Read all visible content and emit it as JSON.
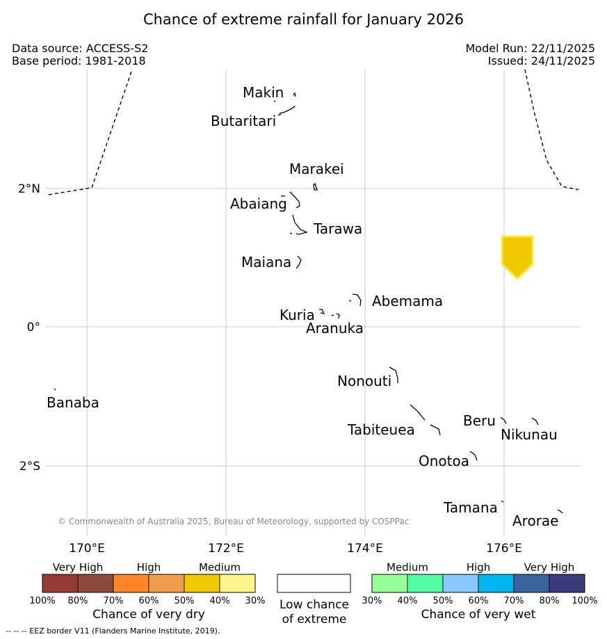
{
  "title": "Chance of extreme rainfall for January 2026",
  "source_line1": "Data source: ACCESS-S2",
  "source_line2": "Base period: 1981-2018",
  "model_run": "Model Run: 22/11/2025",
  "issued": "Issued: 24/11/2025",
  "copyright": "© Commonwealth of Australia 2025, Bureau of Meteorology, supported by COSPPac",
  "footnote": "--  --  -- EEZ border V11 (Flanders Marine Institute, 2019).",
  "axes": {
    "lon_labels": [
      "170°E",
      "172°E",
      "174°E",
      "176°E"
    ],
    "lat_labels": [
      "2°N",
      "0°",
      "2°S"
    ]
  },
  "islands": {
    "makin": "Makin",
    "butaritari": "Butaritari",
    "marakei": "Marakei",
    "abaiang": "Abaiang",
    "tarawa": "Tarawa",
    "maiana": "Maiana",
    "abemama": "Abemama",
    "kuria": "Kuria",
    "aranuka": "Aranuka",
    "nonouti": "Nonouti",
    "banaba": "Banaba",
    "beru": "Beru",
    "tabiteuea": "Tabiteuea",
    "nikunau": "Nikunau",
    "onotoa": "Onotoa",
    "tamana": "Tamana",
    "arorae": "Arorae"
  },
  "highlight_region": {
    "category": "Medium",
    "side": "very dry",
    "color": "#f0c800"
  },
  "legend": {
    "dry": {
      "title": "Chance of very dry",
      "category_labels": [
        "Very High",
        "High",
        "Medium"
      ],
      "tick_labels": [
        "100%",
        "80%",
        "70%",
        "60%",
        "50%",
        "40%",
        "30%"
      ],
      "colors": [
        "#963c32",
        "#8c4b3c",
        "#fe8428",
        "#ee9c4c",
        "#f0c800",
        "#fff58c"
      ]
    },
    "low": {
      "line1": "Low chance",
      "line2": "of extreme",
      "color": "#ffffff"
    },
    "wet": {
      "title": "Chance of very wet",
      "category_labels": [
        "Medium",
        "High",
        "Very High"
      ],
      "tick_labels": [
        "30%",
        "40%",
        "50%",
        "60%",
        "70%",
        "80%",
        "100%"
      ],
      "colors": [
        "#96ff96",
        "#55faa5",
        "#87c8ff",
        "#00b4f0",
        "#3c64a0",
        "#3c3c7d"
      ]
    }
  }
}
